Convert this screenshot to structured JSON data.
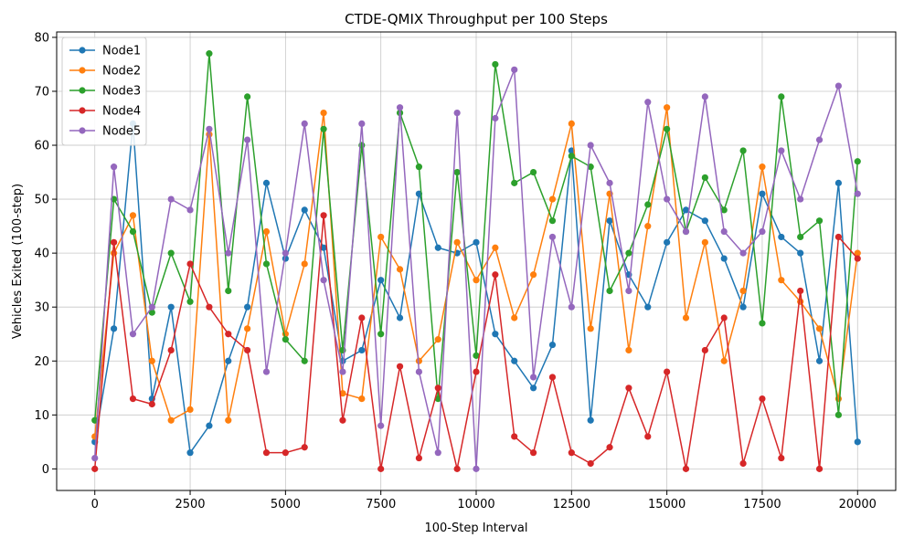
{
  "chart_data": {
    "type": "line",
    "title": "CTDE-QMIX Throughput per 100 Steps",
    "xlabel": "100-Step Interval",
    "ylabel": "Vehicles Exited (100-step)",
    "xlim": [
      -1000,
      21000
    ],
    "ylim": [
      -4,
      81
    ],
    "xticks": [
      0,
      2500,
      5000,
      7500,
      10000,
      12500,
      15000,
      17500,
      20000
    ],
    "yticks": [
      0,
      10,
      20,
      30,
      40,
      50,
      60,
      70,
      80
    ],
    "grid": true,
    "legend_position": "top-left",
    "x": [
      0,
      500,
      1000,
      1500,
      2000,
      2500,
      3000,
      3500,
      4000,
      4500,
      5000,
      5500,
      6000,
      6500,
      7000,
      7500,
      8000,
      8500,
      9000,
      9500,
      10000,
      10500,
      11000,
      11500,
      12000,
      12500,
      13000,
      13500,
      14000,
      14500,
      15000,
      15500,
      16000,
      16500,
      17000,
      17500,
      18000,
      18500,
      19000,
      19500,
      20000
    ],
    "series": [
      {
        "name": "Node1",
        "color": "#1f77b4",
        "values": [
          5,
          26,
          64,
          13,
          30,
          3,
          8,
          20,
          30,
          53,
          39,
          48,
          41,
          20,
          22,
          35,
          28,
          51,
          41,
          40,
          42,
          25,
          20,
          15,
          23,
          59,
          9,
          46,
          36,
          30,
          42,
          48,
          46,
          39,
          30,
          51,
          43,
          40,
          20,
          53,
          5
        ]
      },
      {
        "name": "Node2",
        "color": "#ff7f0e",
        "values": [
          6,
          40,
          47,
          20,
          9,
          11,
          62,
          9,
          26,
          44,
          25,
          38,
          66,
          14,
          13,
          43,
          37,
          20,
          24,
          42,
          35,
          41,
          28,
          36,
          50,
          64,
          26,
          51,
          22,
          45,
          67,
          28,
          42,
          20,
          33,
          56,
          35,
          31,
          26,
          13,
          40
        ]
      },
      {
        "name": "Node3",
        "color": "#2ca02c",
        "values": [
          9,
          50,
          44,
          29,
          40,
          31,
          77,
          33,
          69,
          38,
          24,
          20,
          63,
          22,
          60,
          25,
          66,
          56,
          13,
          55,
          21,
          75,
          53,
          55,
          46,
          58,
          56,
          33,
          40,
          49,
          63,
          44,
          54,
          48,
          59,
          27,
          69,
          43,
          46,
          10,
          57
        ]
      },
      {
        "name": "Node4",
        "color": "#d62728",
        "values": [
          0,
          42,
          13,
          12,
          22,
          38,
          30,
          25,
          22,
          3,
          3,
          4,
          47,
          9,
          28,
          0,
          19,
          2,
          15,
          0,
          18,
          36,
          6,
          3,
          17,
          3,
          1,
          4,
          15,
          6,
          18,
          0,
          22,
          28,
          1,
          13,
          2,
          33,
          0,
          43,
          39
        ]
      },
      {
        "name": "Node5",
        "color": "#9467bd",
        "values": [
          2,
          56,
          25,
          30,
          50,
          48,
          63,
          40,
          61,
          18,
          40,
          64,
          35,
          18,
          64,
          8,
          67,
          18,
          3,
          66,
          0,
          65,
          74,
          17,
          43,
          30,
          60,
          53,
          33,
          68,
          50,
          44,
          69,
          44,
          40,
          44,
          59,
          50,
          61,
          71,
          51
        ]
      }
    ]
  }
}
